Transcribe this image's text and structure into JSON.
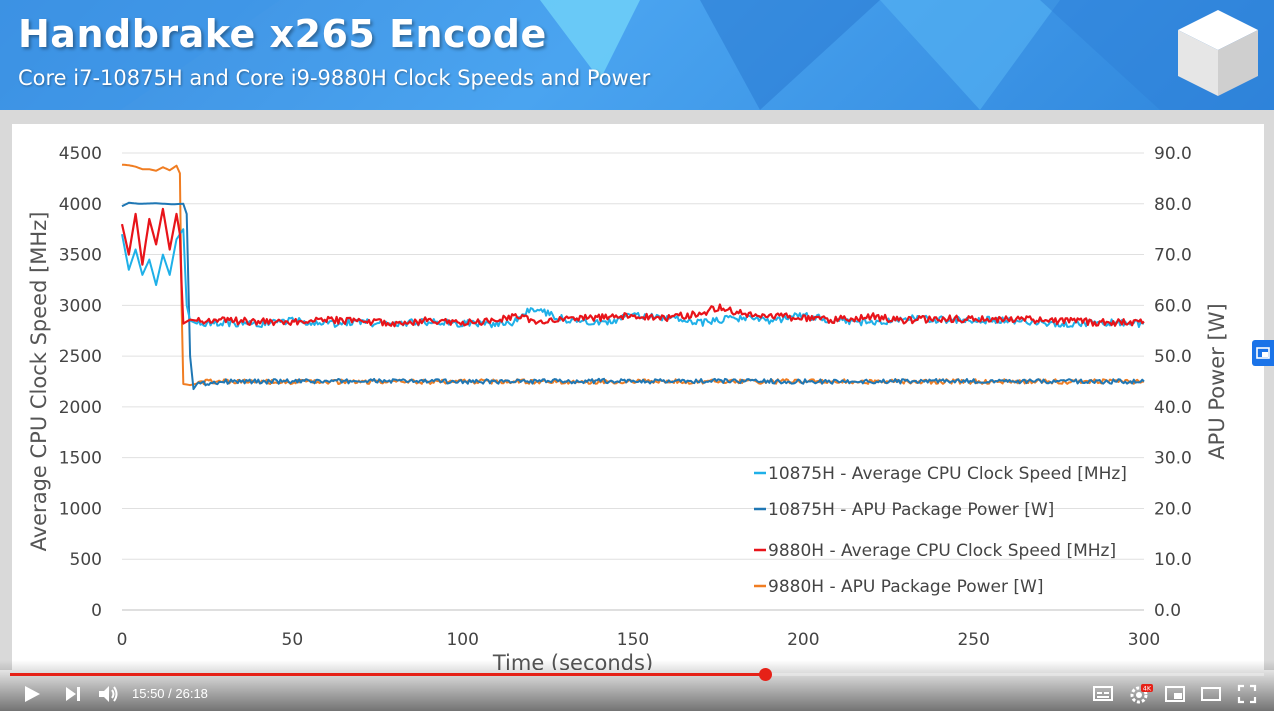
{
  "header": {
    "title": "Handbrake x265 Encode",
    "subtitle": "Core i7-10875H and Core i9-9880H Clock Speeds and Power"
  },
  "player": {
    "current_time": "15:50",
    "duration": "26:18",
    "time_display": "15:50 / 26:18",
    "progress_fraction": 0.602,
    "quality_badge": "4K",
    "accent_color": "#e62117"
  },
  "watermark": "Hardware Unboxed",
  "chart_data": {
    "type": "line",
    "title": "",
    "xlabel": "Time (seconds)",
    "ylabel": "Average CPU Clock Speed [MHz]",
    "y2label": "APU Power [W]",
    "xlim": [
      0,
      300
    ],
    "ylim": [
      0,
      4500
    ],
    "y2lim": [
      0,
      90
    ],
    "x_ticks": [
      "0",
      "50",
      "100",
      "150",
      "200",
      "250",
      "300"
    ],
    "y_ticks": [
      "0",
      "500",
      "1000",
      "1500",
      "2000",
      "2500",
      "3000",
      "3500",
      "4000",
      "4500"
    ],
    "y2_ticks": [
      "0.0",
      "10.0",
      "20.0",
      "30.0",
      "40.0",
      "50.0",
      "60.0",
      "70.0",
      "80.0",
      "90.0"
    ],
    "grid": "horizontal",
    "legend_position": "bottom-right",
    "series": [
      {
        "name": "10875H - Average CPU Clock Speed [MHz]",
        "axis": "left",
        "color": "#1fb0e8",
        "x": [
          0,
          2,
          4,
          6,
          8,
          10,
          12,
          14,
          16,
          18,
          19,
          20,
          22,
          30,
          40,
          50,
          60,
          70,
          80,
          90,
          100,
          110,
          115,
          120,
          130,
          140,
          150,
          160,
          170,
          180,
          190,
          200,
          210,
          220,
          230,
          240,
          250,
          260,
          270,
          280,
          290,
          300
        ],
        "y": [
          3700,
          3350,
          3550,
          3300,
          3450,
          3200,
          3500,
          3300,
          3650,
          3750,
          3000,
          2850,
          2820,
          2830,
          2810,
          2850,
          2820,
          2830,
          2820,
          2840,
          2820,
          2810,
          2830,
          2980,
          2860,
          2820,
          2900,
          2880,
          2830,
          2880,
          2850,
          2900,
          2850,
          2830,
          2870,
          2860,
          2850,
          2860,
          2830,
          2820,
          2830,
          2820
        ]
      },
      {
        "name": "10875H - APU Package Power [W]",
        "axis": "right",
        "color": "#1f77b4",
        "x": [
          0,
          2,
          5,
          10,
          15,
          18,
          19,
          20,
          21,
          22,
          30,
          50,
          80,
          100,
          120,
          140,
          160,
          180,
          200,
          220,
          240,
          260,
          280,
          300
        ],
        "y": [
          79.5,
          80.2,
          80.0,
          80.1,
          79.9,
          80.0,
          78.0,
          50.0,
          43.5,
          44.5,
          45.0,
          45.0,
          45.1,
          45.0,
          45.0,
          45.1,
          45.0,
          45.1,
          45.0,
          45.0,
          45.1,
          45.0,
          45.0,
          45.0
        ]
      },
      {
        "name": "9880H - Average CPU Clock Speed [MHz]",
        "axis": "left",
        "color": "#e8141a",
        "x": [
          0,
          2,
          4,
          6,
          8,
          10,
          12,
          14,
          16,
          17,
          17.5,
          18,
          20,
          25,
          30,
          40,
          50,
          60,
          70,
          80,
          90,
          100,
          110,
          115,
          120,
          130,
          140,
          150,
          160,
          170,
          175,
          180,
          190,
          200,
          210,
          220,
          230,
          240,
          250,
          260,
          270,
          280,
          290,
          300
        ],
        "y": [
          3800,
          3500,
          3900,
          3400,
          3850,
          3600,
          3950,
          3550,
          3900,
          3700,
          3200,
          2820,
          2860,
          2830,
          2850,
          2840,
          2830,
          2860,
          2840,
          2820,
          2850,
          2830,
          2840,
          2900,
          2850,
          2860,
          2880,
          2900,
          2880,
          2920,
          2980,
          2930,
          2900,
          2870,
          2860,
          2890,
          2850,
          2870,
          2860,
          2870,
          2850,
          2840,
          2830,
          2840
        ]
      },
      {
        "name": "9880H - APU Package Power [W]",
        "axis": "right",
        "color": "#f07d22",
        "x": [
          0,
          2,
          4,
          6,
          8,
          10,
          12,
          14,
          16,
          17,
          17.5,
          18,
          20,
          25,
          50,
          100,
          150,
          200,
          250,
          300
        ],
        "y": [
          87.7,
          87.6,
          87.3,
          86.8,
          86.8,
          86.5,
          87.2,
          86.6,
          87.5,
          86.0,
          60.0,
          44.5,
          44.3,
          45.0,
          44.9,
          45.0,
          45.0,
          45.0,
          45.0,
          45.0
        ]
      }
    ]
  }
}
